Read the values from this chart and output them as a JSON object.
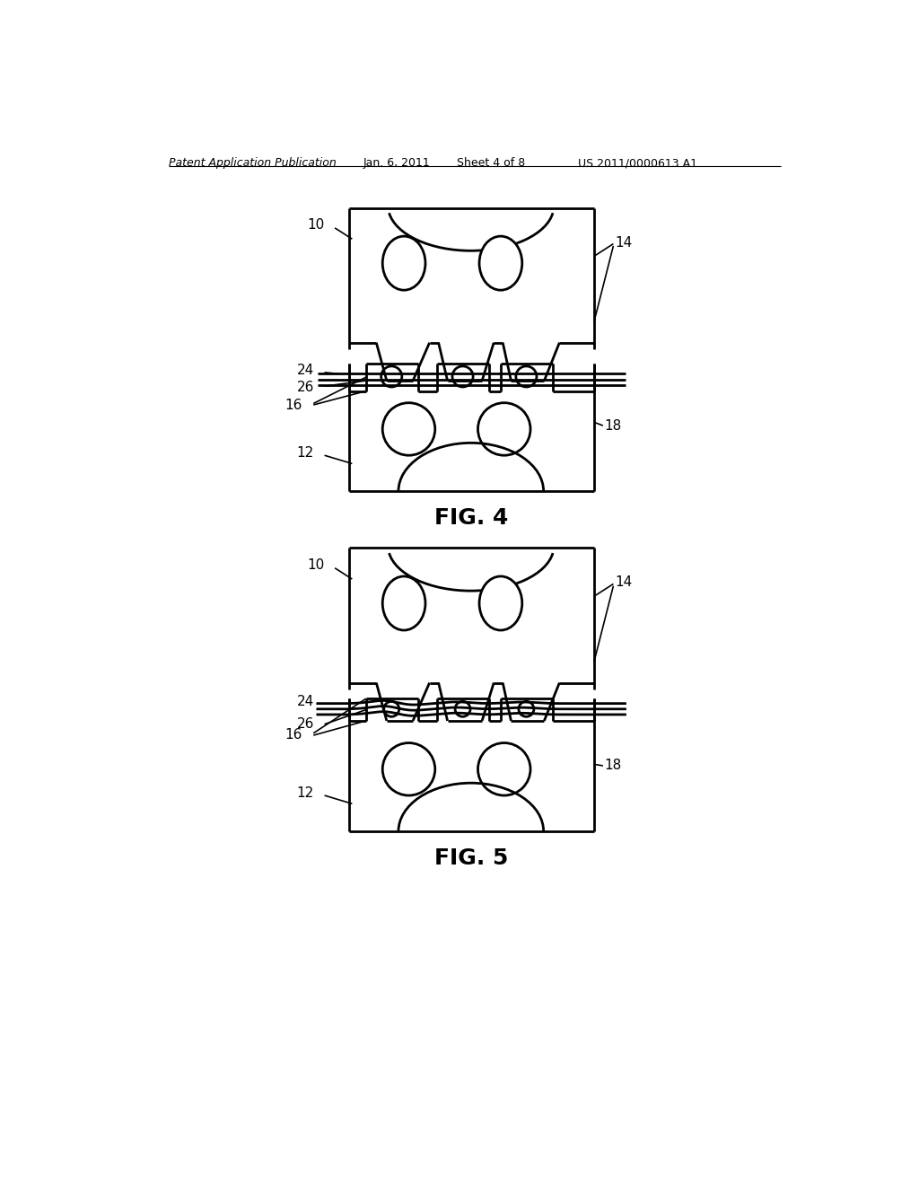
{
  "bg_color": "#ffffff",
  "line_color": "#000000",
  "header_text": "Patent Application Publication",
  "header_date": "Jan. 6, 2011",
  "header_sheet": "Sheet 4 of 8",
  "header_patent": "US 2011/0000613 A1",
  "fig4_label": "FIG. 4",
  "fig5_label": "FIG. 5",
  "lw": 1.6,
  "lw_thick": 2.0,
  "lw_thin": 1.2
}
